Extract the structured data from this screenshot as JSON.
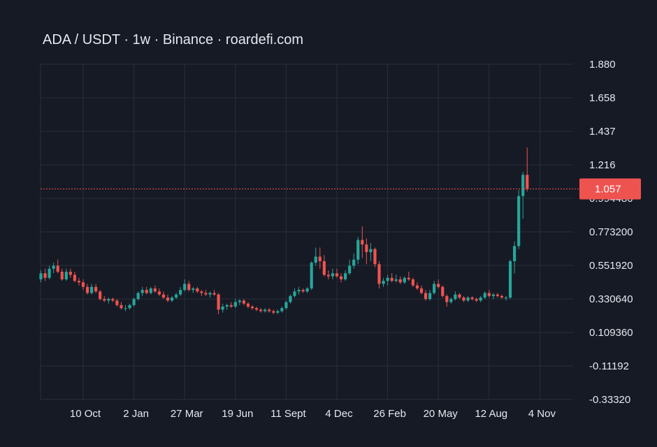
{
  "title": "ADA / USDT · 1w · Binance · roardefi.com",
  "colors": {
    "background": "#161a25",
    "grid": "#2a2e39",
    "up": "#26a69a",
    "down": "#ef5350",
    "text": "#e6e8ee",
    "price_line": "#ef5350"
  },
  "chart_data": {
    "type": "candlestick",
    "title": "ADA / USDT · 1w · Binance · roardefi.com",
    "ylim": [
      -0.3332,
      1.88
    ],
    "y_tick_labels": [
      "1.880",
      "1.658",
      "1.437",
      "1.216",
      "0.994480",
      "0.773200",
      "0.551920",
      "0.330640",
      "0.109360",
      "-0.11192",
      "-0.33320"
    ],
    "y_tick_values": [
      1.88,
      1.658,
      1.437,
      1.216,
      0.99448,
      0.7732,
      0.55192,
      0.33064,
      0.10936,
      -0.11192,
      -0.3332
    ],
    "x_tick_labels": [
      "10 Oct",
      "2 Jan",
      "27 Mar",
      "19 Jun",
      "11 Sept",
      "4 Dec",
      "26 Feb",
      "20 May",
      "12 Aug",
      "4 Nov"
    ],
    "x_tick_index": [
      10,
      22,
      34,
      46,
      58,
      70,
      82,
      94,
      106,
      118
    ],
    "current_price": 1.057,
    "current_price_label": "1.057",
    "grid": true,
    "candles": [
      [
        0.46,
        0.52,
        0.44,
        0.5
      ],
      [
        0.5,
        0.53,
        0.45,
        0.47
      ],
      [
        0.47,
        0.55,
        0.46,
        0.53
      ],
      [
        0.53,
        0.57,
        0.5,
        0.55
      ],
      [
        0.55,
        0.59,
        0.5,
        0.51
      ],
      [
        0.51,
        0.53,
        0.45,
        0.46
      ],
      [
        0.46,
        0.53,
        0.45,
        0.51
      ],
      [
        0.51,
        0.53,
        0.47,
        0.49
      ],
      [
        0.49,
        0.51,
        0.44,
        0.45
      ],
      [
        0.45,
        0.47,
        0.42,
        0.44
      ],
      [
        0.44,
        0.46,
        0.39,
        0.41
      ],
      [
        0.41,
        0.43,
        0.36,
        0.37
      ],
      [
        0.37,
        0.43,
        0.36,
        0.41
      ],
      [
        0.41,
        0.43,
        0.37,
        0.38
      ],
      [
        0.38,
        0.39,
        0.32,
        0.33
      ],
      [
        0.33,
        0.35,
        0.31,
        0.32
      ],
      [
        0.32,
        0.34,
        0.3,
        0.33
      ],
      [
        0.33,
        0.34,
        0.31,
        0.32
      ],
      [
        0.32,
        0.33,
        0.28,
        0.29
      ],
      [
        0.29,
        0.31,
        0.26,
        0.27
      ],
      [
        0.27,
        0.29,
        0.25,
        0.27
      ],
      [
        0.27,
        0.3,
        0.26,
        0.29
      ],
      [
        0.29,
        0.34,
        0.28,
        0.33
      ],
      [
        0.33,
        0.38,
        0.32,
        0.37
      ],
      [
        0.37,
        0.41,
        0.35,
        0.39
      ],
      [
        0.39,
        0.41,
        0.36,
        0.37
      ],
      [
        0.37,
        0.41,
        0.36,
        0.4
      ],
      [
        0.4,
        0.42,
        0.37,
        0.38
      ],
      [
        0.38,
        0.4,
        0.35,
        0.36
      ],
      [
        0.36,
        0.38,
        0.33,
        0.34
      ],
      [
        0.34,
        0.36,
        0.31,
        0.32
      ],
      [
        0.32,
        0.35,
        0.31,
        0.34
      ],
      [
        0.34,
        0.37,
        0.33,
        0.36
      ],
      [
        0.36,
        0.41,
        0.35,
        0.39
      ],
      [
        0.39,
        0.46,
        0.38,
        0.43
      ],
      [
        0.43,
        0.45,
        0.38,
        0.39
      ],
      [
        0.39,
        0.41,
        0.37,
        0.4
      ],
      [
        0.4,
        0.41,
        0.37,
        0.38
      ],
      [
        0.38,
        0.39,
        0.35,
        0.37
      ],
      [
        0.37,
        0.39,
        0.35,
        0.36
      ],
      [
        0.36,
        0.38,
        0.34,
        0.37
      ],
      [
        0.37,
        0.39,
        0.35,
        0.36
      ],
      [
        0.36,
        0.37,
        0.23,
        0.26
      ],
      [
        0.26,
        0.3,
        0.24,
        0.28
      ],
      [
        0.28,
        0.3,
        0.26,
        0.29
      ],
      [
        0.29,
        0.31,
        0.27,
        0.28
      ],
      [
        0.28,
        0.33,
        0.27,
        0.31
      ],
      [
        0.31,
        0.33,
        0.29,
        0.32
      ],
      [
        0.32,
        0.33,
        0.29,
        0.3
      ],
      [
        0.3,
        0.31,
        0.27,
        0.28
      ],
      [
        0.28,
        0.29,
        0.26,
        0.27
      ],
      [
        0.27,
        0.28,
        0.25,
        0.26
      ],
      [
        0.26,
        0.27,
        0.24,
        0.25
      ],
      [
        0.25,
        0.27,
        0.24,
        0.26
      ],
      [
        0.26,
        0.27,
        0.24,
        0.25
      ],
      [
        0.25,
        0.26,
        0.23,
        0.24
      ],
      [
        0.24,
        0.26,
        0.23,
        0.25
      ],
      [
        0.25,
        0.28,
        0.24,
        0.27
      ],
      [
        0.27,
        0.32,
        0.26,
        0.31
      ],
      [
        0.31,
        0.36,
        0.3,
        0.35
      ],
      [
        0.35,
        0.4,
        0.34,
        0.38
      ],
      [
        0.38,
        0.41,
        0.36,
        0.39
      ],
      [
        0.39,
        0.4,
        0.37,
        0.38
      ],
      [
        0.38,
        0.41,
        0.37,
        0.4
      ],
      [
        0.4,
        0.58,
        0.39,
        0.57
      ],
      [
        0.57,
        0.67,
        0.55,
        0.61
      ],
      [
        0.61,
        0.67,
        0.53,
        0.58
      ],
      [
        0.58,
        0.62,
        0.48,
        0.49
      ],
      [
        0.49,
        0.52,
        0.46,
        0.48
      ],
      [
        0.48,
        0.53,
        0.46,
        0.5
      ],
      [
        0.5,
        0.53,
        0.47,
        0.48
      ],
      [
        0.48,
        0.5,
        0.44,
        0.46
      ],
      [
        0.46,
        0.52,
        0.45,
        0.5
      ],
      [
        0.5,
        0.59,
        0.49,
        0.55
      ],
      [
        0.55,
        0.63,
        0.53,
        0.59
      ],
      [
        0.59,
        0.74,
        0.56,
        0.72
      ],
      [
        0.72,
        0.81,
        0.6,
        0.69
      ],
      [
        0.69,
        0.73,
        0.56,
        0.64
      ],
      [
        0.64,
        0.7,
        0.58,
        0.66
      ],
      [
        0.66,
        0.67,
        0.54,
        0.56
      ],
      [
        0.56,
        0.58,
        0.4,
        0.43
      ],
      [
        0.43,
        0.47,
        0.41,
        0.45
      ],
      [
        0.45,
        0.49,
        0.42,
        0.47
      ],
      [
        0.47,
        0.5,
        0.44,
        0.45
      ],
      [
        0.45,
        0.49,
        0.44,
        0.46
      ],
      [
        0.46,
        0.48,
        0.43,
        0.44
      ],
      [
        0.44,
        0.48,
        0.43,
        0.47
      ],
      [
        0.47,
        0.51,
        0.45,
        0.46
      ],
      [
        0.46,
        0.47,
        0.41,
        0.42
      ],
      [
        0.42,
        0.44,
        0.39,
        0.4
      ],
      [
        0.4,
        0.42,
        0.36,
        0.37
      ],
      [
        0.37,
        0.39,
        0.32,
        0.33
      ],
      [
        0.33,
        0.39,
        0.32,
        0.37
      ],
      [
        0.37,
        0.45,
        0.36,
        0.43
      ],
      [
        0.43,
        0.46,
        0.4,
        0.41
      ],
      [
        0.41,
        0.42,
        0.34,
        0.35
      ],
      [
        0.35,
        0.36,
        0.28,
        0.31
      ],
      [
        0.31,
        0.34,
        0.3,
        0.33
      ],
      [
        0.33,
        0.38,
        0.32,
        0.36
      ],
      [
        0.36,
        0.37,
        0.33,
        0.34
      ],
      [
        0.34,
        0.35,
        0.31,
        0.32
      ],
      [
        0.32,
        0.35,
        0.31,
        0.34
      ],
      [
        0.34,
        0.35,
        0.32,
        0.33
      ],
      [
        0.33,
        0.34,
        0.31,
        0.32
      ],
      [
        0.32,
        0.35,
        0.31,
        0.34
      ],
      [
        0.34,
        0.38,
        0.33,
        0.37
      ],
      [
        0.37,
        0.39,
        0.34,
        0.35
      ],
      [
        0.35,
        0.37,
        0.33,
        0.36
      ],
      [
        0.36,
        0.37,
        0.34,
        0.35
      ],
      [
        0.35,
        0.36,
        0.33,
        0.34
      ],
      [
        0.34,
        0.35,
        0.32,
        0.34
      ],
      [
        0.34,
        0.59,
        0.33,
        0.58
      ],
      [
        0.58,
        0.71,
        0.5,
        0.68
      ],
      [
        0.68,
        1.05,
        0.66,
        1.01
      ],
      [
        1.01,
        1.17,
        0.86,
        1.15
      ],
      [
        1.15,
        1.33,
        1.04,
        1.057
      ]
    ]
  }
}
